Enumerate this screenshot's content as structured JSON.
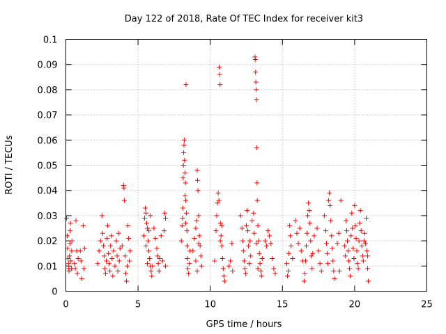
{
  "chart_data": {
    "type": "scatter",
    "title": "Day 122 of 2018, Rate Of TEC Index for receiver kit3",
    "xlabel": "GPS time / hours",
    "ylabel": "ROTI / TECUs",
    "xlim": [
      0,
      25
    ],
    "ylim": [
      0,
      0.1
    ],
    "x_ticks": [
      "0",
      "5",
      "10",
      "15",
      "20",
      "25"
    ],
    "y_ticks": [
      "0",
      "0.01",
      "0.02",
      "0.03",
      "0.04",
      "0.05",
      "0.06",
      "0.07",
      "0.08",
      "0.09",
      "0.1"
    ],
    "grid": true,
    "marker": "+",
    "color": "#ff0000",
    "series": [
      {
        "name": "ROTI",
        "points": [
          [
            0.05,
            0.029
          ],
          [
            0.1,
            0.022
          ],
          [
            0.12,
            0.017
          ],
          [
            0.15,
            0.013
          ],
          [
            0.18,
            0.011
          ],
          [
            0.2,
            0.009
          ],
          [
            0.22,
            0.008
          ],
          [
            0.25,
            0.014
          ],
          [
            0.28,
            0.019
          ],
          [
            0.3,
            0.024
          ],
          [
            0.32,
            0.027
          ],
          [
            0.35,
            0.012
          ],
          [
            0.38,
            0.009
          ],
          [
            0.4,
            0.016
          ],
          [
            0.42,
            0.02
          ],
          [
            0.6,
            0.011
          ],
          [
            0.65,
            0.009
          ],
          [
            0.7,
            0.028
          ],
          [
            0.75,
            0.016
          ],
          [
            0.8,
            0.007
          ],
          [
            0.85,
            0.013
          ],
          [
            1.0,
            0.016
          ],
          [
            1.05,
            0.012
          ],
          [
            1.1,
            0.005
          ],
          [
            1.2,
            0.026
          ],
          [
            1.25,
            0.009
          ],
          [
            1.3,
            0.017
          ],
          [
            2.2,
            0.011
          ],
          [
            2.3,
            0.016
          ],
          [
            2.4,
            0.02
          ],
          [
            2.5,
            0.03
          ],
          [
            2.55,
            0.023
          ],
          [
            2.6,
            0.018
          ],
          [
            2.65,
            0.014
          ],
          [
            2.7,
            0.009
          ],
          [
            2.75,
            0.007
          ],
          [
            2.8,
            0.012
          ],
          [
            2.85,
            0.021
          ],
          [
            2.9,
            0.026
          ],
          [
            2.95,
            0.015
          ],
          [
            3.0,
            0.011
          ],
          [
            3.05,
            0.008
          ],
          [
            3.1,
            0.018
          ],
          [
            3.15,
            0.022
          ],
          [
            3.2,
            0.013
          ],
          [
            3.25,
            0.006
          ],
          [
            3.3,
            0.016
          ],
          [
            3.4,
            0.01
          ],
          [
            3.5,
            0.02
          ],
          [
            3.55,
            0.014
          ],
          [
            3.6,
            0.008
          ],
          [
            3.65,
            0.023
          ],
          [
            3.7,
            0.012
          ],
          [
            3.75,
            0.017
          ],
          [
            3.9,
            0.018
          ],
          [
            4.0,
            0.042
          ],
          [
            4.02,
            0.041
          ],
          [
            4.05,
            0.036
          ],
          [
            4.1,
            0.014
          ],
          [
            4.15,
            0.007
          ],
          [
            4.2,
            0.004
          ],
          [
            4.25,
            0.01
          ],
          [
            4.3,
            0.026
          ],
          [
            4.35,
            0.021
          ],
          [
            4.4,
            0.012
          ],
          [
            4.45,
            0.016
          ],
          [
            5.4,
            0.022
          ],
          [
            5.45,
            0.029
          ],
          [
            5.5,
            0.033
          ],
          [
            5.55,
            0.031
          ],
          [
            5.6,
            0.027
          ],
          [
            5.65,
            0.025
          ],
          [
            5.7,
            0.02
          ],
          [
            5.75,
            0.016
          ],
          [
            5.8,
            0.013
          ],
          [
            5.85,
            0.01
          ],
          [
            5.9,
            0.008
          ],
          [
            5.95,
            0.006
          ],
          [
            5.55,
            0.018
          ],
          [
            5.65,
            0.011
          ],
          [
            5.75,
            0.024
          ],
          [
            5.85,
            0.03
          ],
          [
            6.0,
            0.01
          ],
          [
            6.1,
            0.025
          ],
          [
            6.2,
            0.021
          ],
          [
            6.3,
            0.017
          ],
          [
            6.35,
            0.014
          ],
          [
            6.4,
            0.011
          ],
          [
            6.45,
            0.008
          ],
          [
            6.5,
            0.013
          ],
          [
            6.6,
            0.022
          ],
          [
            6.7,
            0.012
          ],
          [
            6.8,
            0.024
          ],
          [
            6.85,
            0.031
          ],
          [
            6.9,
            0.029
          ],
          [
            6.9,
            0.01
          ],
          [
            8.0,
            0.02
          ],
          [
            8.05,
            0.026
          ],
          [
            8.08,
            0.029
          ],
          [
            8.1,
            0.033
          ],
          [
            8.12,
            0.045
          ],
          [
            8.14,
            0.05
          ],
          [
            8.16,
            0.055
          ],
          [
            8.18,
            0.058
          ],
          [
            8.2,
            0.06
          ],
          [
            8.22,
            0.052
          ],
          [
            8.25,
            0.047
          ],
          [
            8.28,
            0.043
          ],
          [
            8.3,
            0.036
          ],
          [
            8.32,
            0.082
          ],
          [
            8.35,
            0.031
          ],
          [
            8.38,
            0.024
          ],
          [
            8.4,
            0.018
          ],
          [
            8.42,
            0.013
          ],
          [
            8.45,
            0.009
          ],
          [
            8.5,
            0.007
          ],
          [
            8.55,
            0.011
          ],
          [
            8.6,
            0.016
          ],
          [
            8.25,
            0.038
          ],
          [
            8.3,
            0.027
          ],
          [
            8.8,
            0.016
          ],
          [
            8.9,
            0.021
          ],
          [
            9.0,
            0.025
          ],
          [
            9.05,
            0.028
          ],
          [
            9.1,
            0.048
          ],
          [
            9.12,
            0.044
          ],
          [
            9.15,
            0.04
          ],
          [
            9.2,
            0.03
          ],
          [
            9.25,
            0.022
          ],
          [
            9.3,
            0.018
          ],
          [
            9.35,
            0.014
          ],
          [
            9.4,
            0.01
          ],
          [
            9.0,
            0.012
          ],
          [
            9.1,
            0.008
          ],
          [
            9.2,
            0.019
          ],
          [
            10.3,
            0.012
          ],
          [
            10.4,
            0.024
          ],
          [
            10.45,
            0.03
          ],
          [
            10.5,
            0.035
          ],
          [
            10.55,
            0.039
          ],
          [
            10.6,
            0.036
          ],
          [
            10.62,
            0.089
          ],
          [
            10.65,
            0.086
          ],
          [
            10.68,
            0.082
          ],
          [
            10.7,
            0.027
          ],
          [
            10.75,
            0.022
          ],
          [
            10.8,
            0.018
          ],
          [
            10.85,
            0.013
          ],
          [
            10.9,
            0.009
          ],
          [
            10.95,
            0.006
          ],
          [
            11.0,
            0.004
          ],
          [
            10.7,
            0.02
          ],
          [
            10.8,
            0.026
          ],
          [
            11.3,
            0.01
          ],
          [
            11.4,
            0.012
          ],
          [
            11.5,
            0.019
          ],
          [
            11.55,
            0.008
          ],
          [
            12.1,
            0.03
          ],
          [
            12.2,
            0.025
          ],
          [
            12.25,
            0.02
          ],
          [
            12.3,
            0.016
          ],
          [
            12.35,
            0.012
          ],
          [
            12.4,
            0.009
          ],
          [
            12.45,
            0.007
          ],
          [
            12.5,
            0.026
          ],
          [
            12.55,
            0.032
          ],
          [
            12.6,
            0.024
          ],
          [
            12.65,
            0.018
          ],
          [
            12.7,
            0.011
          ],
          [
            12.75,
            0.02
          ],
          [
            12.8,
            0.014
          ],
          [
            12.9,
            0.028
          ],
          [
            13.0,
            0.031
          ],
          [
            13.05,
            0.023
          ],
          [
            13.1,
            0.093
          ],
          [
            13.12,
            0.092
          ],
          [
            13.14,
            0.087
          ],
          [
            13.16,
            0.083
          ],
          [
            13.18,
            0.08
          ],
          [
            13.2,
            0.076
          ],
          [
            13.22,
            0.057
          ],
          [
            13.24,
            0.043
          ],
          [
            13.26,
            0.036
          ],
          [
            13.3,
            0.026
          ],
          [
            13.35,
            0.02
          ],
          [
            13.4,
            0.015
          ],
          [
            13.45,
            0.011
          ],
          [
            13.5,
            0.008
          ],
          [
            13.55,
            0.006
          ],
          [
            13.6,
            0.013
          ],
          [
            13.2,
            0.019
          ],
          [
            13.3,
            0.009
          ],
          [
            13.8,
            0.02
          ],
          [
            13.9,
            0.018
          ],
          [
            14.0,
            0.024
          ],
          [
            14.1,
            0.022
          ],
          [
            14.2,
            0.019
          ],
          [
            14.3,
            0.013
          ],
          [
            14.4,
            0.009
          ],
          [
            14.5,
            0.007
          ],
          [
            15.3,
            0.011
          ],
          [
            15.35,
            0.006
          ],
          [
            15.4,
            0.008
          ],
          [
            15.45,
            0.015
          ],
          [
            15.5,
            0.026
          ],
          [
            15.55,
            0.022
          ],
          [
            15.6,
            0.018
          ],
          [
            15.7,
            0.013
          ],
          [
            15.9,
            0.028
          ],
          [
            16.0,
            0.023
          ],
          [
            16.1,
            0.019
          ],
          [
            16.2,
            0.025
          ],
          [
            16.3,
            0.016
          ],
          [
            16.4,
            0.012
          ],
          [
            16.5,
            0.004
          ],
          [
            16.55,
            0.007
          ],
          [
            16.6,
            0.012
          ],
          [
            16.65,
            0.018
          ],
          [
            16.7,
            0.023
          ],
          [
            16.75,
            0.03
          ],
          [
            16.8,
            0.035
          ],
          [
            16.85,
            0.032
          ],
          [
            16.9,
            0.027
          ],
          [
            16.95,
            0.02
          ],
          [
            17.0,
            0.014
          ],
          [
            17.05,
            0.009
          ],
          [
            17.1,
            0.015
          ],
          [
            17.2,
            0.022
          ],
          [
            17.4,
            0.025
          ],
          [
            17.5,
            0.016
          ],
          [
            17.6,
            0.011
          ],
          [
            17.7,
            0.008
          ],
          [
            17.9,
            0.03
          ],
          [
            18.0,
            0.024
          ],
          [
            18.05,
            0.019
          ],
          [
            18.1,
            0.015
          ],
          [
            18.15,
            0.011
          ],
          [
            18.2,
            0.036
          ],
          [
            18.25,
            0.039
          ],
          [
            18.3,
            0.034
          ],
          [
            18.35,
            0.028
          ],
          [
            18.4,
            0.022
          ],
          [
            18.45,
            0.017
          ],
          [
            18.5,
            0.012
          ],
          [
            18.55,
            0.008
          ],
          [
            18.6,
            0.005
          ],
          [
            18.8,
            0.019
          ],
          [
            18.9,
            0.023
          ],
          [
            18.95,
            0.008
          ],
          [
            19.05,
            0.036
          ],
          [
            19.3,
            0.018
          ],
          [
            19.35,
            0.014
          ],
          [
            19.4,
            0.028
          ],
          [
            19.45,
            0.024
          ],
          [
            19.5,
            0.02
          ],
          [
            19.55,
            0.016
          ],
          [
            19.6,
            0.012
          ],
          [
            19.65,
            0.009
          ],
          [
            19.7,
            0.006
          ],
          [
            19.75,
            0.022
          ],
          [
            19.8,
            0.031
          ],
          [
            19.85,
            0.025
          ],
          [
            19.9,
            0.017
          ],
          [
            19.95,
            0.013
          ],
          [
            20.0,
            0.034
          ],
          [
            20.05,
            0.026
          ],
          [
            20.1,
            0.021
          ],
          [
            20.15,
            0.016
          ],
          [
            20.2,
            0.011
          ],
          [
            20.25,
            0.009
          ],
          [
            20.3,
            0.02
          ],
          [
            20.35,
            0.027
          ],
          [
            20.4,
            0.032
          ],
          [
            20.45,
            0.024
          ],
          [
            20.5,
            0.018
          ],
          [
            20.55,
            0.014
          ],
          [
            20.6,
            0.012
          ],
          [
            20.65,
            0.02
          ],
          [
            20.7,
            0.023
          ],
          [
            20.75,
            0.019
          ],
          [
            20.8,
            0.029
          ],
          [
            20.85,
            0.016
          ],
          [
            20.9,
            0.009
          ],
          [
            20.95,
            0.004
          ],
          [
            20.9,
            0.014
          ]
        ]
      }
    ]
  }
}
